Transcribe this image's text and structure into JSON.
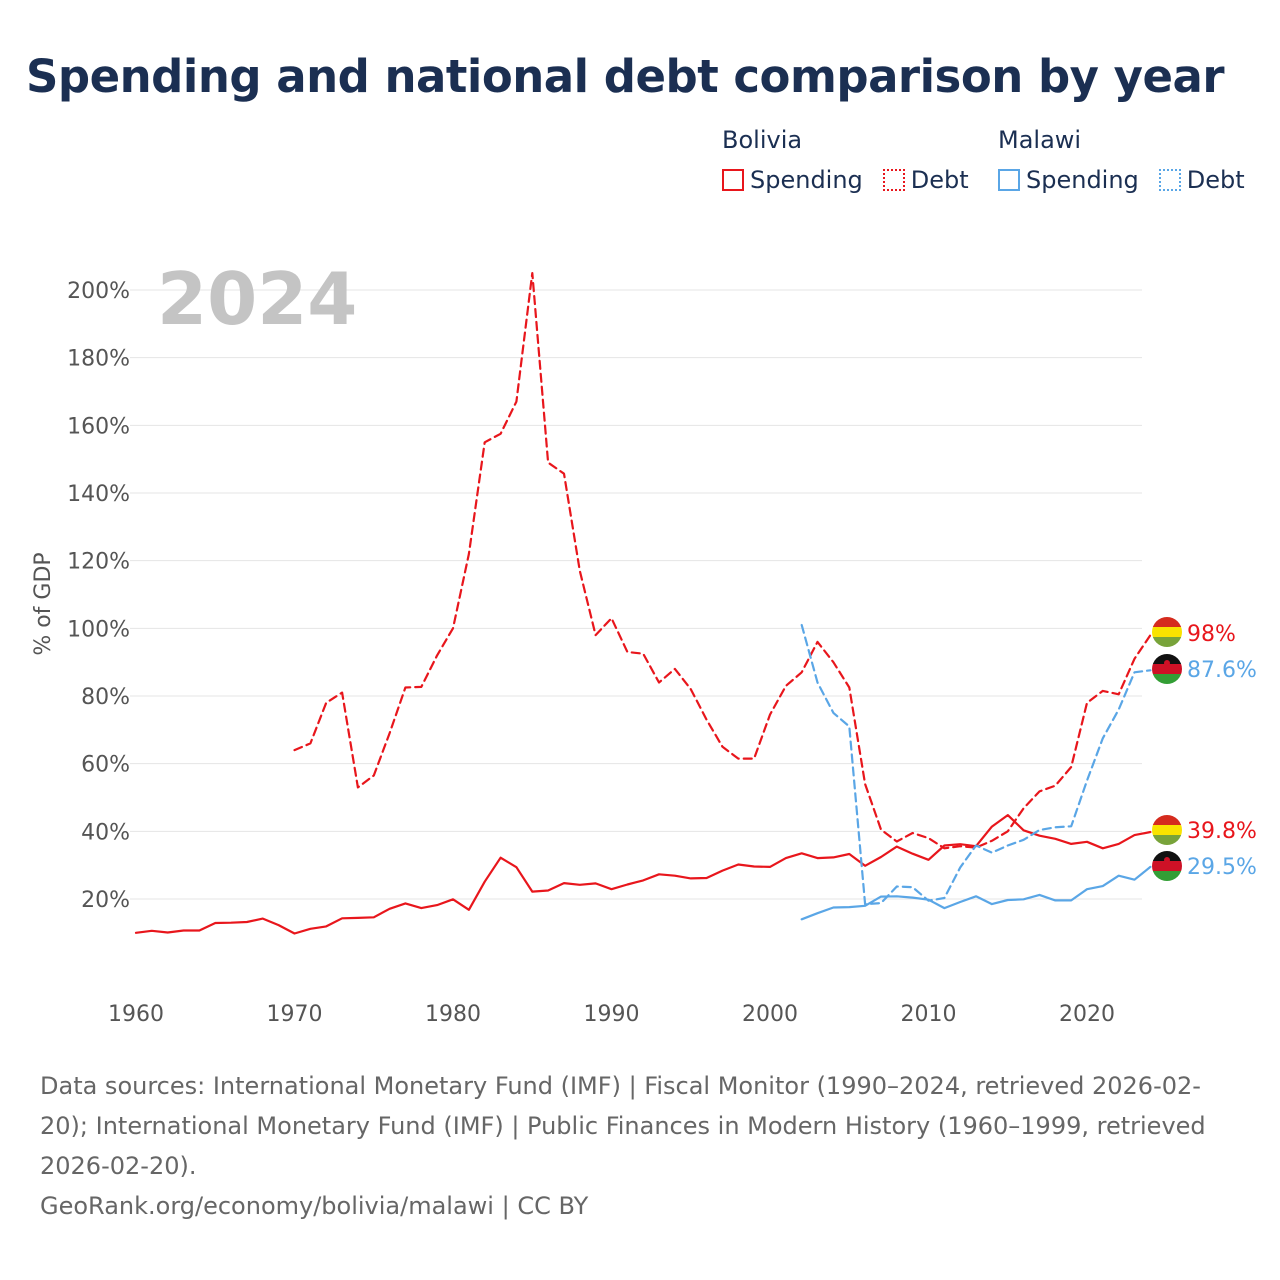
{
  "title": "Spending and national debt comparison by year",
  "legend": {
    "bolivia": {
      "label": "Bolivia",
      "spending": "Spending",
      "debt": "Debt",
      "color": "#e8161c"
    },
    "malawi": {
      "label": "Malawi",
      "spending": "Spending",
      "debt": "Debt",
      "color": "#5aa6e6"
    }
  },
  "footer": {
    "sources": "Data sources: International Monetary Fund (IMF) | Fiscal Monitor (1990–2024, retrieved 2026-02-20); International Monetary Fund (IMF) | Public Finances in Modern History (1960–1999, retrieved 2026-02-20).",
    "credit": "GeoRank.org/economy/bolivia/malawi | CC BY"
  },
  "chart_data": {
    "type": "line",
    "year_label": "2024",
    "ylabel": "% of GDP",
    "xlim": [
      1960,
      2025
    ],
    "ylim": [
      0,
      205
    ],
    "xticks": [
      1960,
      1970,
      1980,
      1990,
      2000,
      2010,
      2020
    ],
    "xtick_labels": [
      "1960",
      "1970",
      "1980",
      "1990",
      "2000",
      "2010",
      "2020"
    ],
    "yticks": [
      20,
      40,
      60,
      80,
      100,
      120,
      140,
      160,
      180,
      200
    ],
    "ytick_labels": [
      "20%",
      "40%",
      "60%",
      "80%",
      "100%",
      "120%",
      "140%",
      "160%",
      "180%",
      "200%"
    ],
    "grid": true,
    "series": [
      {
        "name": "Bolivia Spending",
        "country": "Bolivia",
        "kind": "spending",
        "color": "#e8161c",
        "x": [
          1960,
          1961,
          1962,
          1963,
          1964,
          1965,
          1966,
          1967,
          1968,
          1969,
          1970,
          1971,
          1972,
          1973,
          1974,
          1975,
          1976,
          1977,
          1978,
          1979,
          1980,
          1981,
          1982,
          1983,
          1984,
          1985,
          1986,
          1987,
          1988,
          1989,
          1990,
          1991,
          1992,
          1993,
          1994,
          1995,
          1996,
          1997,
          1998,
          1999,
          2000,
          2001,
          2002,
          2003,
          2004,
          2005,
          2006,
          2007,
          2008,
          2009,
          2010,
          2011,
          2012,
          2013,
          2014,
          2015,
          2016,
          2017,
          2018,
          2019,
          2020,
          2021,
          2022,
          2023,
          2024
        ],
        "values": [
          10,
          10.6,
          10.1,
          10.7,
          10.7,
          12.9,
          13,
          13.2,
          14.2,
          12.3,
          9.8,
          11.2,
          11.9,
          14.3,
          14.4,
          14.6,
          17.1,
          18.7,
          17.3,
          18.2,
          19.9,
          16.8,
          25.1,
          32.2,
          29.4,
          22.2,
          22.5,
          24.7,
          24.2,
          24.6,
          22.9,
          24.3,
          25.5,
          27.3,
          26.9,
          26.1,
          26.2,
          28.4,
          30.2,
          29.6,
          29.5,
          32.1,
          33.5,
          32.1,
          32.3,
          33.3,
          29.8,
          32.4,
          35.5,
          33.4,
          31.6,
          35.8,
          36.2,
          35.6,
          41.4,
          44.8,
          40.3,
          38.7,
          37.8,
          36.3,
          36.9,
          35,
          36.3,
          38.9,
          39.8
        ],
        "end_label": "39.8%"
      },
      {
        "name": "Bolivia Debt",
        "country": "Bolivia",
        "kind": "debt",
        "color": "#e8161c",
        "x": [
          1970,
          1971,
          1972,
          1973,
          1974,
          1975,
          1976,
          1977,
          1978,
          1979,
          1980,
          1981,
          1982,
          1983,
          1984,
          1985,
          1986,
          1987,
          1988,
          1989,
          1990,
          1991,
          1992,
          1993,
          1994,
          1995,
          1996,
          1997,
          1998,
          1999,
          2000,
          2001,
          2002,
          2003,
          2004,
          2005,
          2006,
          2007,
          2008,
          2009,
          2010,
          2011,
          2012,
          2013,
          2014,
          2015,
          2016,
          2017,
          2018,
          2019,
          2020,
          2021,
          2022,
          2023,
          2024
        ],
        "values": [
          64,
          66,
          78,
          81,
          53,
          56.5,
          69,
          82.5,
          82.7,
          92,
          100,
          122,
          155,
          157.5,
          167,
          205,
          149,
          145.7,
          117,
          98,
          103,
          93,
          92.5,
          84,
          88,
          82,
          73,
          65,
          61.5,
          61.5,
          74.5,
          83,
          87,
          96,
          90,
          82.5,
          54,
          40.5,
          37,
          39.5,
          38,
          35,
          35.6,
          35.2,
          37.2,
          40,
          46.8,
          51.8,
          53.5,
          59,
          78,
          81.5,
          80.5,
          91,
          98
        ],
        "end_label": "98%"
      },
      {
        "name": "Malawi Spending",
        "country": "Malawi",
        "kind": "spending",
        "color": "#5aa6e6",
        "x": [
          2002,
          2003,
          2004,
          2005,
          2006,
          2007,
          2008,
          2009,
          2010,
          2011,
          2012,
          2013,
          2014,
          2015,
          2016,
          2017,
          2018,
          2019,
          2020,
          2021,
          2022,
          2023,
          2024
        ],
        "values": [
          14,
          15.8,
          17.5,
          17.6,
          18,
          20.7,
          20.8,
          20.4,
          19.8,
          17.3,
          19.1,
          20.8,
          18.5,
          19.7,
          19.9,
          21.2,
          19.6,
          19.6,
          22.9,
          23.8,
          26.9,
          25.7,
          29.5
        ],
        "end_label": "29.5%"
      },
      {
        "name": "Malawi Debt",
        "country": "Malawi",
        "kind": "debt",
        "color": "#5aa6e6",
        "x": [
          2002,
          2003,
          2004,
          2005,
          2006,
          2007,
          2008,
          2009,
          2010,
          2011,
          2012,
          2013,
          2014,
          2015,
          2016,
          2017,
          2018,
          2019,
          2020,
          2021,
          2022,
          2023,
          2024
        ],
        "values": [
          101,
          84,
          75,
          71,
          18.5,
          18.8,
          23.7,
          23.5,
          19.5,
          20.3,
          29.3,
          35.8,
          33.7,
          35.8,
          37.5,
          40.4,
          41.2,
          41.5,
          55,
          67.5,
          76,
          87,
          87.6
        ],
        "end_label": "87.6%"
      }
    ]
  }
}
